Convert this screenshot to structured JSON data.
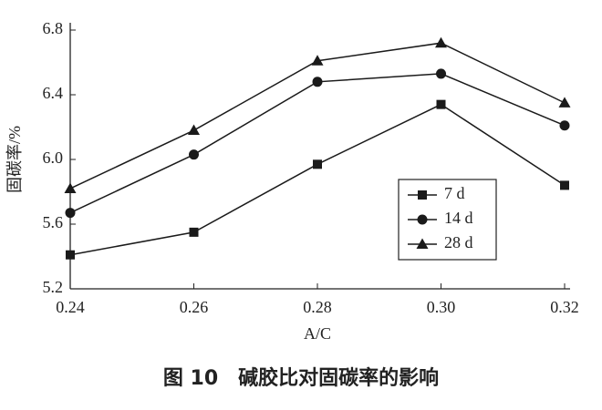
{
  "chart_data": {
    "type": "line",
    "caption": "图 10　碱胶比对固碳率的影响",
    "xlabel": "A/C",
    "ylabel": "固碳率/%",
    "x": [
      0.24,
      0.26,
      0.28,
      0.3,
      0.32
    ],
    "xlim": [
      0.24,
      0.32
    ],
    "xticks": [
      0.24,
      0.26,
      0.28,
      {
        "value": 0.3,
        "label": "0.30"
      },
      0.32
    ],
    "ylim": [
      5.2,
      6.8
    ],
    "yticks": [
      5.2,
      5.6,
      {
        "value": 6.0,
        "label": "6.0"
      },
      6.4,
      6.8
    ],
    "grid": false,
    "legend": "lower right",
    "series": [
      {
        "name": "7 d",
        "color": "#1a1a1a",
        "marker": "square",
        "values": [
          5.41,
          5.55,
          5.97,
          6.34,
          5.84
        ]
      },
      {
        "name": "14 d",
        "color": "#1a1a1a",
        "marker": "circle",
        "values": [
          5.67,
          6.03,
          6.48,
          6.53,
          6.21
        ]
      },
      {
        "name": "28 d",
        "color": "#1a1a1a",
        "marker": "triangle",
        "values": [
          5.82,
          6.18,
          6.61,
          6.72,
          6.35
        ]
      }
    ]
  }
}
